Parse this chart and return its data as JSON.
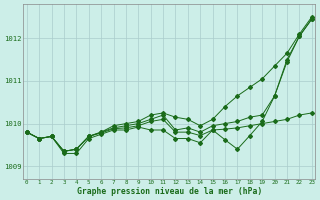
{
  "x": [
    0,
    1,
    2,
    3,
    4,
    5,
    6,
    7,
    8,
    9,
    10,
    11,
    12,
    13,
    14,
    15,
    16,
    17,
    18,
    19,
    20,
    21,
    22,
    23
  ],
  "line_steep": [
    1009.8,
    1009.65,
    1009.7,
    1009.35,
    1009.4,
    1009.7,
    1009.8,
    1009.95,
    1010.0,
    1010.05,
    1010.2,
    1010.25,
    1010.15,
    1010.1,
    1009.95,
    1010.1,
    1010.4,
    1010.65,
    1010.85,
    1011.05,
    1011.35,
    1011.65,
    1012.1,
    1012.5
  ],
  "line_mid": [
    1009.8,
    1009.65,
    1009.7,
    1009.35,
    1009.4,
    1009.7,
    1009.8,
    1009.9,
    1009.95,
    1010.0,
    1010.1,
    1010.2,
    1009.85,
    1009.9,
    1009.8,
    1009.95,
    1010.0,
    1010.05,
    1010.15,
    1010.2,
    1010.65,
    1011.5,
    1012.05,
    1012.45
  ],
  "line_flat": [
    1009.8,
    1009.65,
    1009.7,
    1009.35,
    1009.4,
    1009.7,
    1009.78,
    1009.88,
    1009.9,
    1009.95,
    1010.05,
    1010.1,
    1009.8,
    1009.8,
    1009.72,
    1009.85,
    1009.87,
    1009.9,
    1009.95,
    1010.0,
    1010.05,
    1010.1,
    1010.2,
    1010.25
  ],
  "line_dip": [
    1009.8,
    1009.65,
    1009.7,
    1009.3,
    1009.3,
    1009.65,
    1009.75,
    1009.85,
    1009.85,
    1009.92,
    1009.85,
    1009.85,
    1009.65,
    1009.65,
    1009.55,
    1009.85,
    1009.62,
    1009.4,
    1009.72,
    1010.05,
    1010.65,
    1011.45,
    1012.05,
    1012.45
  ],
  "bg_color": "#cceee8",
  "grid_color": "#aacccc",
  "line_color": "#1a6b1a",
  "ylabel_values": [
    1009,
    1010,
    1011,
    1012
  ],
  "xlabel_values": [
    0,
    1,
    2,
    3,
    4,
    5,
    6,
    7,
    8,
    9,
    10,
    11,
    12,
    13,
    14,
    15,
    16,
    17,
    18,
    19,
    20,
    21,
    22,
    23
  ],
  "xlabel_label": "Graphe pression niveau de la mer (hPa)",
  "ylim": [
    1008.7,
    1012.8
  ],
  "xlim": [
    -0.3,
    23.3
  ]
}
